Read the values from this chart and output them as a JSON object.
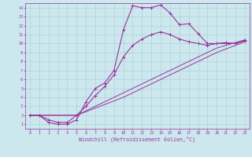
{
  "xlabel": "Windchill (Refroidissement éolien,°C)",
  "bg_color": "#cce8ee",
  "grid_color": "#b0d0d8",
  "line_color": "#993399",
  "xlim": [
    -0.5,
    23.5
  ],
  "ylim": [
    0.5,
    14.5
  ],
  "xticks": [
    0,
    1,
    2,
    3,
    4,
    5,
    6,
    7,
    8,
    9,
    10,
    11,
    12,
    13,
    14,
    15,
    16,
    17,
    18,
    19,
    20,
    21,
    22,
    23
  ],
  "yticks": [
    1,
    2,
    3,
    4,
    5,
    6,
    7,
    8,
    9,
    10,
    11,
    12,
    13,
    14
  ],
  "line1_x": [
    0,
    1,
    2,
    3,
    4,
    5,
    6,
    7,
    8,
    9,
    10,
    11,
    12,
    13,
    14,
    15,
    16,
    17,
    18,
    19,
    20,
    21,
    22,
    23
  ],
  "line1_y": [
    2,
    2,
    1.2,
    1.0,
    1.0,
    1.5,
    3.5,
    5.0,
    5.6,
    7.0,
    11.5,
    14.2,
    14.0,
    14.0,
    14.3,
    13.4,
    12.1,
    12.2,
    11.1,
    10.0,
    10.0,
    10.1,
    10.0,
    10.4
  ],
  "line2_x": [
    0,
    1,
    2,
    3,
    4,
    5,
    6,
    7,
    8,
    9,
    10,
    11,
    12,
    13,
    14,
    15,
    16,
    17,
    18,
    19,
    20,
    21,
    22,
    23
  ],
  "line2_y": [
    2,
    2,
    1.5,
    1.2,
    1.2,
    2.0,
    3.0,
    4.2,
    5.2,
    6.5,
    8.5,
    9.8,
    10.5,
    11.0,
    11.3,
    11.0,
    10.5,
    10.2,
    10.0,
    9.8,
    10.0,
    10.0,
    10.0,
    10.3
  ],
  "line3_x": [
    0,
    5,
    10,
    15,
    20,
    23
  ],
  "line3_y": [
    2,
    2.0,
    4.5,
    7.0,
    9.5,
    10.4
  ],
  "line4_x": [
    0,
    5,
    10,
    15,
    20,
    23
  ],
  "line4_y": [
    2,
    2.0,
    4.0,
    6.5,
    9.0,
    10.2
  ]
}
